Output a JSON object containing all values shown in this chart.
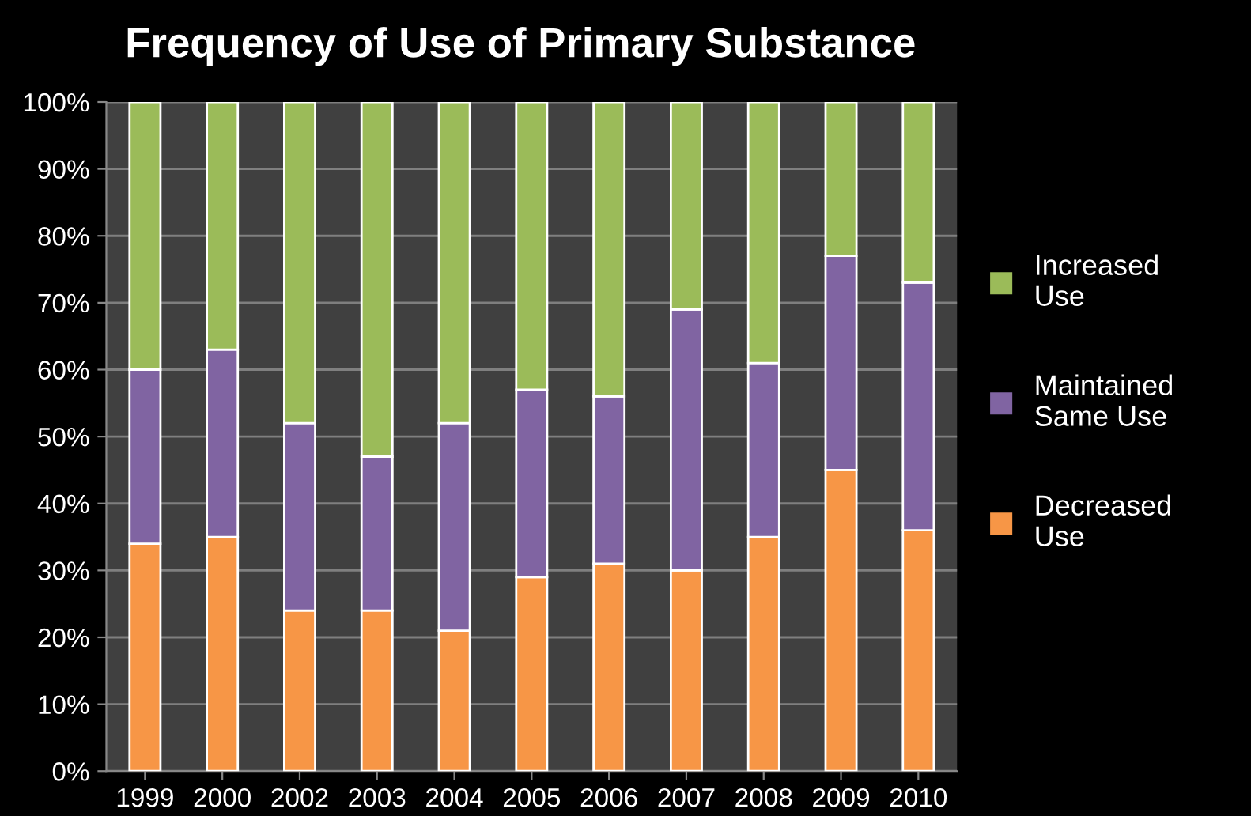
{
  "chart_data": {
    "type": "bar",
    "title": "Frequency of Use of Primary Substance",
    "stacked": true,
    "categories": [
      "1999",
      "2000",
      "2002",
      "2003",
      "2004",
      "2005",
      "2006",
      "2007",
      "2008",
      "2009",
      "2010"
    ],
    "series": [
      {
        "name": "Decreased\nUse",
        "color": "#f79646",
        "values": [
          34,
          35,
          24,
          24,
          21,
          29,
          31,
          30,
          35,
          45,
          36
        ]
      },
      {
        "name": "Maintained\nSame Use",
        "color": "#8064a2",
        "values": [
          26,
          28,
          28,
          23,
          31,
          28,
          25,
          39,
          26,
          32,
          37
        ]
      },
      {
        "name": "Increased\nUse",
        "color": "#9bbb59",
        "values": [
          40,
          37,
          48,
          53,
          48,
          43,
          44,
          31,
          39,
          23,
          27
        ]
      }
    ],
    "ylim": [
      0,
      100
    ],
    "yticks": [
      {
        "value": 0,
        "label": "0%"
      },
      {
        "value": 10,
        "label": "10%"
      },
      {
        "value": 20,
        "label": "20%"
      },
      {
        "value": 30,
        "label": "30%"
      },
      {
        "value": 40,
        "label": "40%"
      },
      {
        "value": 50,
        "label": "50%"
      },
      {
        "value": 60,
        "label": "60%"
      },
      {
        "value": 70,
        "label": "70%"
      },
      {
        "value": 80,
        "label": "80%"
      },
      {
        "value": 90,
        "label": "90%"
      },
      {
        "value": 100,
        "label": "100%"
      }
    ],
    "grid": "y",
    "legend": "right"
  }
}
